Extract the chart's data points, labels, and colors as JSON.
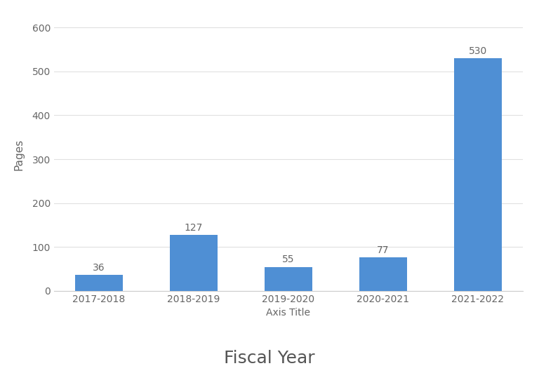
{
  "categories": [
    "2017-2018",
    "2018-2019",
    "2019-2020",
    "2020-2021",
    "2021-2022"
  ],
  "values": [
    36,
    127,
    55,
    77,
    530
  ],
  "bar_color": "#4F8FD4",
  "title": "Fiscal Year",
  "title_fontsize": 18,
  "xlabel": "Axis Title",
  "xlabel_fontsize": 10,
  "ylabel": "Pages",
  "ylabel_fontsize": 11,
  "xtick_fontsize": 10,
  "ytick_fontsize": 10,
  "ylim": [
    0,
    620
  ],
  "yticks": [
    0,
    100,
    200,
    300,
    400,
    500,
    600
  ],
  "background_color": "#ffffff",
  "grid_color": "#e0e0e0",
  "bar_label_fontsize": 10,
  "bar_width": 0.5,
  "label_color": "#666666"
}
